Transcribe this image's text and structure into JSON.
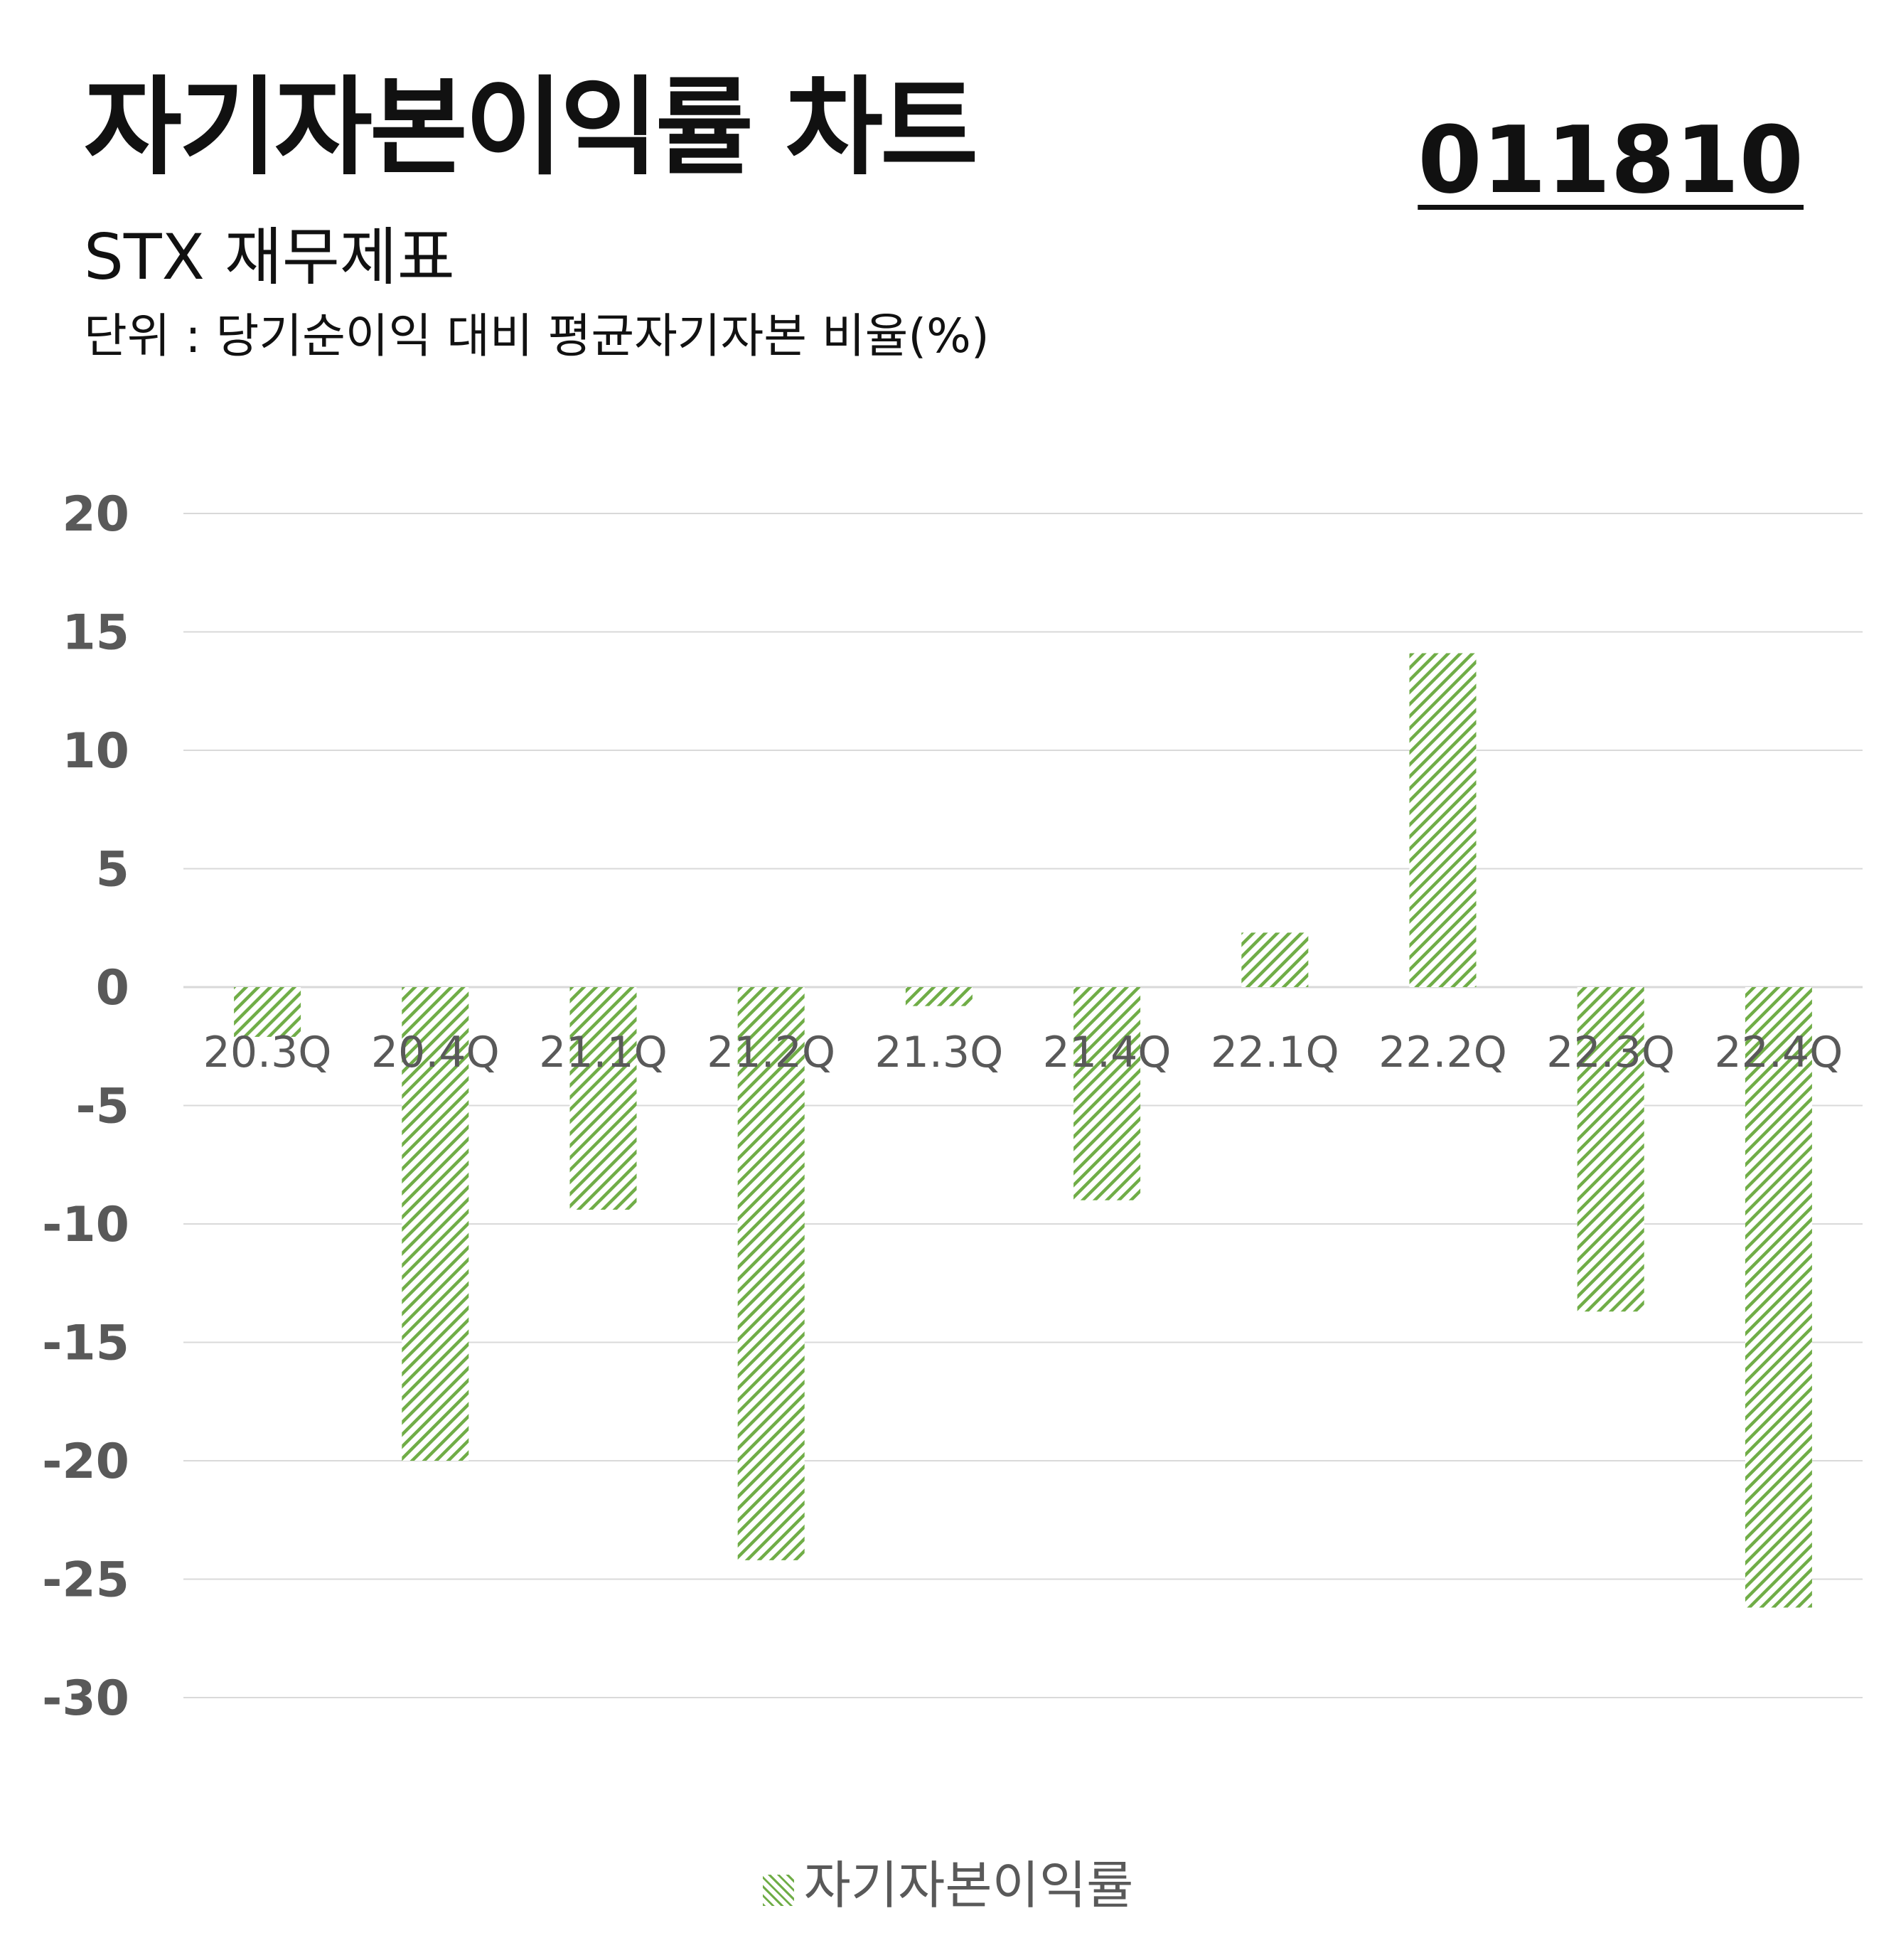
{
  "header": {
    "title": "자기자본이익률 차트",
    "subtitle": "STX 재무제표",
    "unit": "단위 : 당기순이익 대비 평균자기자본 비율(%)",
    "code": "011810"
  },
  "colors": {
    "bar": "#70ad47",
    "grid": "#d9d9d9",
    "axis_text": "#595959"
  },
  "chart_data": {
    "type": "bar",
    "title": "자기자본이익률 차트",
    "categories": [
      "20.3Q",
      "20.4Q",
      "21.1Q",
      "21.2Q",
      "21.3Q",
      "21.4Q",
      "22.1Q",
      "22.2Q",
      "22.3Q",
      "22.4Q"
    ],
    "series": [
      {
        "name": "자기자본이익률",
        "values": [
          -2.1,
          -20.0,
          -9.4,
          -24.2,
          -0.8,
          -9.0,
          2.3,
          14.1,
          -13.7,
          -26.2
        ]
      }
    ],
    "ylim": [
      -30,
      20
    ],
    "yticks": [
      20,
      15,
      10,
      5,
      0,
      -5,
      -10,
      -15,
      -20,
      -25,
      -30
    ],
    "grid": true,
    "legend": "bottom-center"
  }
}
